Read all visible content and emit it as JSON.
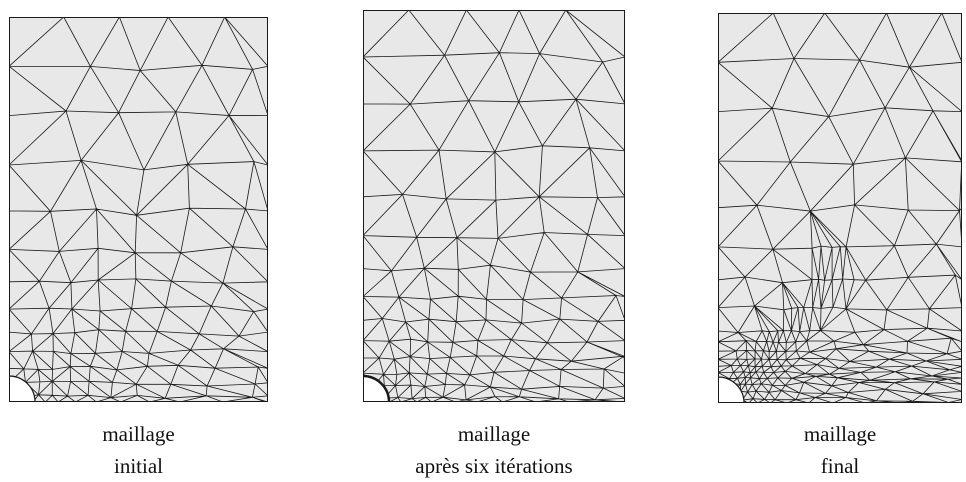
{
  "panels": [
    {
      "line1": "maillage",
      "line2": "initial",
      "refine": 1.0
    },
    {
      "line1": "maillage",
      "line2": "après six itérations",
      "refine": 1.8
    },
    {
      "line1": "maillage",
      "line2": "final",
      "refine": 1.4
    }
  ],
  "colors": {
    "fill": "#e8e8e8",
    "edge": "#1a1a1a"
  }
}
